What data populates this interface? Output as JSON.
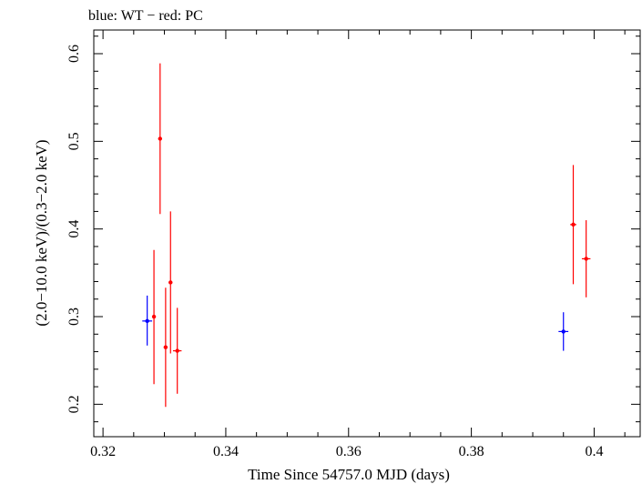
{
  "chart_data": {
    "type": "scatter",
    "title": "blue: WT − red: PC",
    "xlabel": "Time Since 54757.0 MJD (days)",
    "ylabel": "(2.0−10.0 keV)/(0.3−2.0 keV)",
    "xlim": [
      0.3185,
      0.4075
    ],
    "ylim": [
      0.163,
      0.627
    ],
    "x_ticks": [
      0.32,
      0.34,
      0.36,
      0.38,
      0.4
    ],
    "x_tick_labels": [
      "0.32",
      "0.34",
      "0.36",
      "0.38",
      "0.4"
    ],
    "y_ticks": [
      0.2,
      0.3,
      0.4,
      0.5,
      0.6
    ],
    "y_tick_labels": [
      "0.2",
      "0.3",
      "0.4",
      "0.5",
      "0.6"
    ],
    "grid": false,
    "series": [
      {
        "color": "#0000ff",
        "points": [
          {
            "x": 0.3272,
            "y": 0.295,
            "xerr": 0.0008,
            "ylo": 0.267,
            "yhi": 0.324
          },
          {
            "x": 0.395,
            "y": 0.283,
            "xerr": 0.0008,
            "ylo": 0.261,
            "yhi": 0.305
          }
        ]
      },
      {
        "color": "#ff0000",
        "points": [
          {
            "x": 0.3283,
            "y": 0.3,
            "xerr": 0.0003,
            "ylo": 0.223,
            "yhi": 0.376
          },
          {
            "x": 0.3293,
            "y": 0.503,
            "xerr": 0.0003,
            "ylo": 0.417,
            "yhi": 0.589
          },
          {
            "x": 0.3302,
            "y": 0.265,
            "xerr": 0.0003,
            "ylo": 0.197,
            "yhi": 0.333
          },
          {
            "x": 0.331,
            "y": 0.339,
            "xerr": 0.0003,
            "ylo": 0.258,
            "yhi": 0.42
          },
          {
            "x": 0.3321,
            "y": 0.261,
            "xerr": 0.0007,
            "ylo": 0.212,
            "yhi": 0.31
          },
          {
            "x": 0.3966,
            "y": 0.405,
            "xerr": 0.0005,
            "ylo": 0.337,
            "yhi": 0.473
          },
          {
            "x": 0.3987,
            "y": 0.366,
            "xerr": 0.0007,
            "ylo": 0.322,
            "yhi": 0.41
          }
        ]
      }
    ]
  }
}
